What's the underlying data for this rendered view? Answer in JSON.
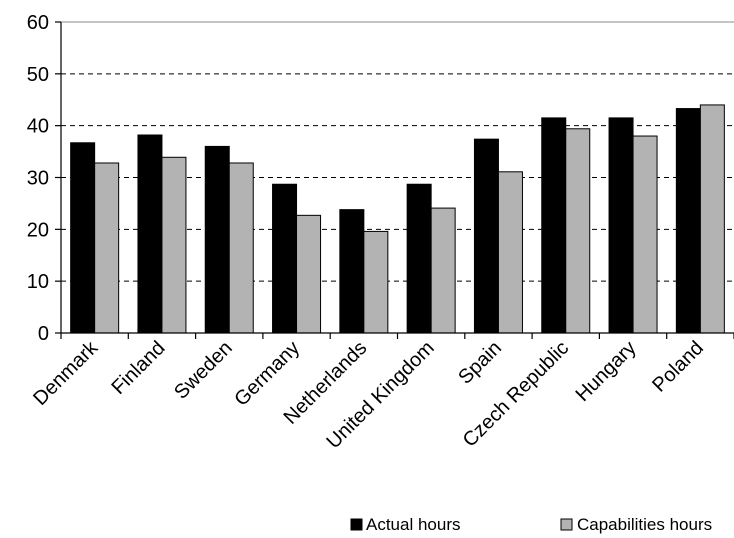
{
  "chart_data": {
    "type": "bar",
    "categories": [
      "Denmark",
      "Finland",
      "Sweden",
      "Germany",
      "Netherlands",
      "United Kingdom",
      "Spain",
      "Czech Republic",
      "Hungary",
      "Poland"
    ],
    "series": [
      {
        "name": "Actual hours",
        "color": "#000000",
        "values": [
          36.7,
          38.2,
          36.0,
          28.7,
          23.8,
          28.7,
          37.4,
          41.5,
          41.5,
          43.3
        ]
      },
      {
        "name": "Capabilities hours",
        "color": "#b3b3b3",
        "values": [
          32.8,
          33.9,
          32.8,
          22.7,
          19.6,
          24.1,
          31.1,
          39.4,
          38.0,
          44.0
        ]
      }
    ],
    "title": "",
    "xlabel": "",
    "ylabel": "",
    "ylim": [
      0,
      60
    ],
    "yticks": [
      0,
      10,
      20,
      30,
      40,
      50,
      60
    ],
    "grid": "dashed horizontal",
    "legend_position": "bottom-right"
  }
}
